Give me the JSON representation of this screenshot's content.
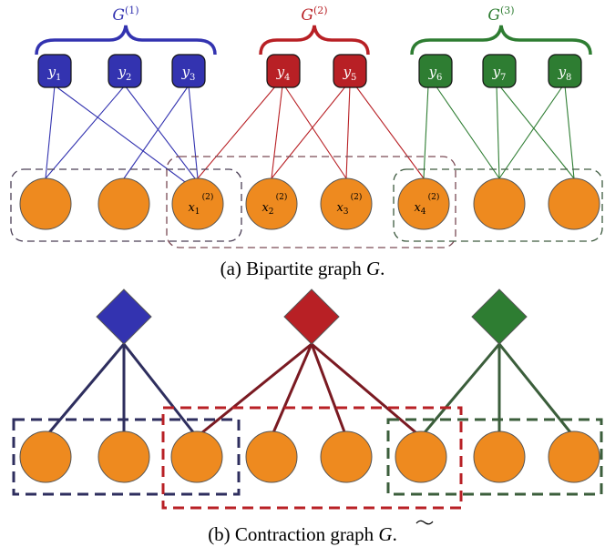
{
  "colors": {
    "blue": "#3333b0",
    "red": "#b82025",
    "green": "#2e7d32",
    "orange": "#ee8a1f",
    "navy_dark": "#2e2e5e",
    "red_dark": "#7a1a22",
    "green_dark": "#3b5e3b",
    "box_a": "#4a3e55",
    "box_b": "#7a4a55",
    "box_c": "#3d5a3f"
  },
  "panel_a": {
    "groups": [
      {
        "base": "G",
        "sup": "(1)"
      },
      {
        "base": "G",
        "sup": "(2)"
      },
      {
        "base": "G",
        "sup": "(3)"
      }
    ],
    "y_nodes": [
      {
        "base": "y",
        "sub": "1"
      },
      {
        "base": "y",
        "sub": "2"
      },
      {
        "base": "y",
        "sub": "3"
      },
      {
        "base": "y",
        "sub": "4"
      },
      {
        "base": "y",
        "sub": "5"
      },
      {
        "base": "y",
        "sub": "6"
      },
      {
        "base": "y",
        "sub": "7"
      },
      {
        "base": "y",
        "sub": "8"
      }
    ],
    "x_nodes": [
      {
        "base": "",
        "sub": "",
        "sup": ""
      },
      {
        "base": "",
        "sub": "",
        "sup": ""
      },
      {
        "base": "x",
        "sub": "1",
        "sup": "(2)"
      },
      {
        "base": "x",
        "sub": "2",
        "sup": "(2)"
      },
      {
        "base": "x",
        "sub": "3",
        "sup": "(2)"
      },
      {
        "base": "x",
        "sub": "4",
        "sup": "(2)"
      },
      {
        "base": "",
        "sub": "",
        "sup": ""
      },
      {
        "base": "",
        "sub": "",
        "sup": ""
      }
    ],
    "caption": {
      "prefix": "(a) Bipartite graph ",
      "symbol": "G",
      "suffix": "."
    }
  },
  "panel_b": {
    "caption": {
      "prefix": "(b) Contraction graph ",
      "symbol": "G",
      "suffix": "."
    }
  }
}
